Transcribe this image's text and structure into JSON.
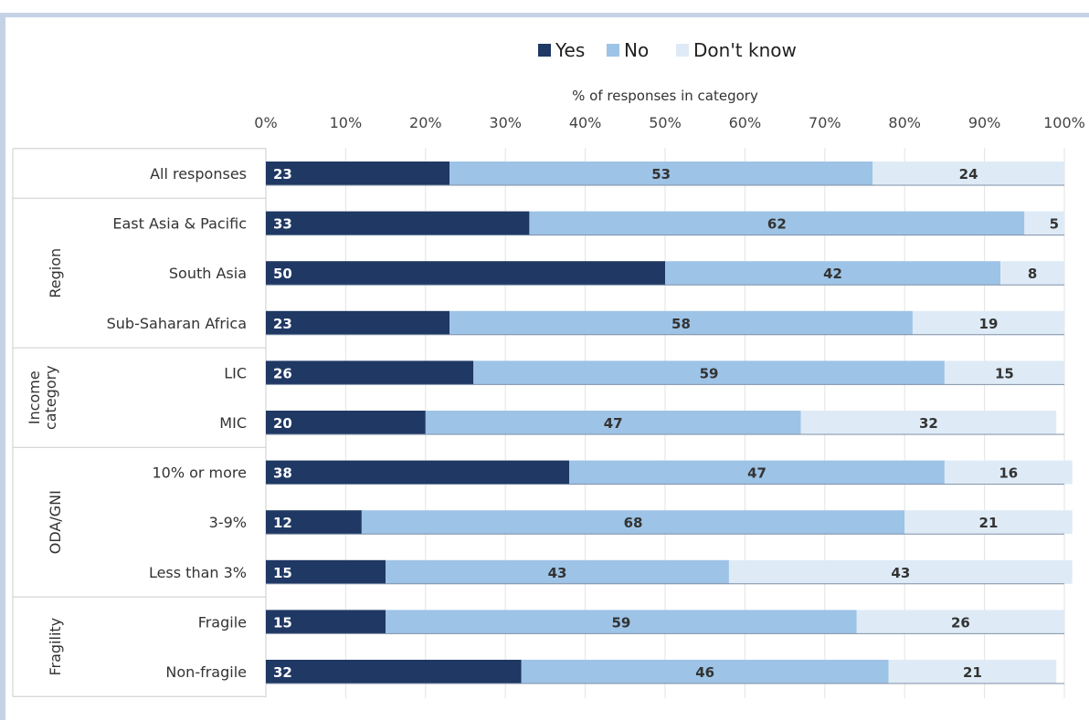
{
  "colors": {
    "yes": "#1f3864",
    "no": "#9dc3e6",
    "dont_know": "#deebf7",
    "frame": "#c5d2e6",
    "grid": "#e3e3e3",
    "divider": "#cccccc"
  },
  "chart_data": {
    "type": "bar",
    "orientation": "horizontal",
    "stacked": true,
    "title": "",
    "xlabel": "% of responses in category",
    "ylabel": "",
    "xlim": [
      0,
      100
    ],
    "x_ticks": [
      "0%",
      "10%",
      "20%",
      "30%",
      "40%",
      "50%",
      "60%",
      "70%",
      "80%",
      "90%",
      "100%"
    ],
    "legend_position": "top",
    "grid": true,
    "categories": [
      "All responses",
      "East Asia & Pacific",
      "South Asia",
      "Sub-Saharan Africa",
      "LIC",
      "MIC",
      "10% or more",
      "3-9%",
      "Less than 3%",
      "Fragile",
      "Non-fragile"
    ],
    "groups": [
      {
        "name": "",
        "members": [
          "All responses"
        ]
      },
      {
        "name": "Region",
        "members": [
          "East Asia & Pacific",
          "South Asia",
          "Sub-Saharan Africa"
        ]
      },
      {
        "name": "Income category",
        "members": [
          "LIC",
          "MIC"
        ]
      },
      {
        "name": "ODA/GNI",
        "members": [
          "10% or more",
          "3-9%",
          "Less than 3%"
        ]
      },
      {
        "name": "Fragility",
        "members": [
          "Fragile",
          "Non-fragile"
        ]
      }
    ],
    "series": [
      {
        "name": "Yes",
        "color": "#1f3864",
        "label_color": "#ffffff",
        "label_align": "start",
        "values": [
          23,
          33,
          50,
          23,
          26,
          20,
          38,
          12,
          15,
          15,
          32
        ]
      },
      {
        "name": "No",
        "color": "#9dc3e6",
        "label_color": "#333333",
        "label_align": "center",
        "values": [
          53,
          62,
          42,
          58,
          59,
          47,
          47,
          68,
          43,
          59,
          46
        ]
      },
      {
        "name": "Don't know",
        "color": "#deebf7",
        "label_color": "#333333",
        "label_align": "center",
        "values": [
          24,
          5,
          8,
          19,
          15,
          32,
          16,
          21,
          43,
          26,
          21
        ]
      }
    ]
  }
}
